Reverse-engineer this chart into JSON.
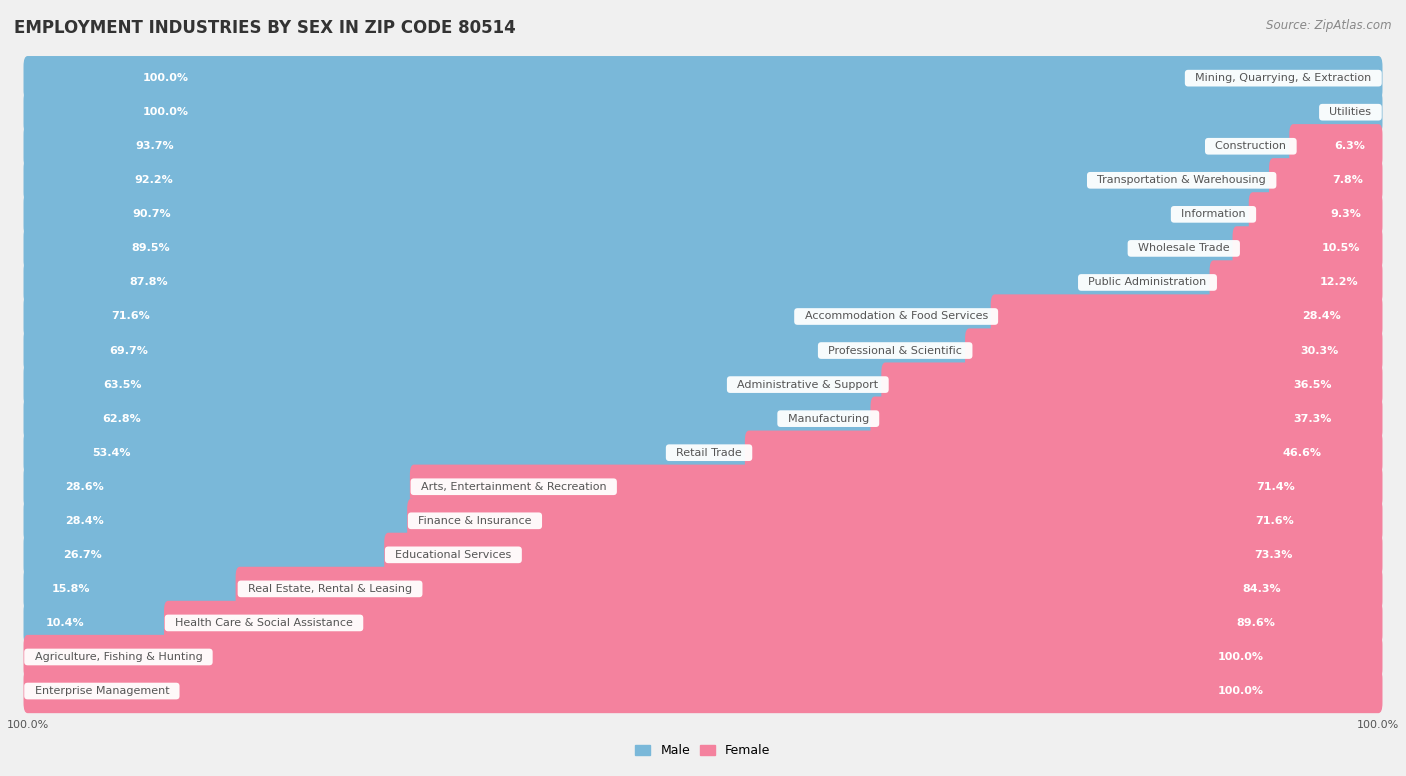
{
  "title": "EMPLOYMENT INDUSTRIES BY SEX IN ZIP CODE 80514",
  "source": "Source: ZipAtlas.com",
  "categories": [
    "Mining, Quarrying, & Extraction",
    "Utilities",
    "Construction",
    "Transportation & Warehousing",
    "Information",
    "Wholesale Trade",
    "Public Administration",
    "Accommodation & Food Services",
    "Professional & Scientific",
    "Administrative & Support",
    "Manufacturing",
    "Retail Trade",
    "Arts, Entertainment & Recreation",
    "Finance & Insurance",
    "Educational Services",
    "Real Estate, Rental & Leasing",
    "Health Care & Social Assistance",
    "Agriculture, Fishing & Hunting",
    "Enterprise Management"
  ],
  "male": [
    100.0,
    100.0,
    93.7,
    92.2,
    90.7,
    89.5,
    87.8,
    71.6,
    69.7,
    63.5,
    62.8,
    53.4,
    28.6,
    28.4,
    26.7,
    15.8,
    10.4,
    0.0,
    0.0
  ],
  "female": [
    0.0,
    0.0,
    6.3,
    7.8,
    9.3,
    10.5,
    12.2,
    28.4,
    30.3,
    36.5,
    37.3,
    46.6,
    71.4,
    71.6,
    73.3,
    84.3,
    89.6,
    100.0,
    100.0
  ],
  "male_color": "#7ab8d9",
  "female_color": "#f4829e",
  "bg_color": "#f0f0f0",
  "row_bg_color": "#ffffff",
  "row_alt_bg_color": "#f5f5f5",
  "label_color": "#ffffff",
  "cat_bg_color": "#ffffff",
  "cat_text_color": "#555555",
  "title_fontsize": 12,
  "source_fontsize": 8.5,
  "label_fontsize": 8,
  "category_fontsize": 8,
  "pct_outside_color": "#555555"
}
